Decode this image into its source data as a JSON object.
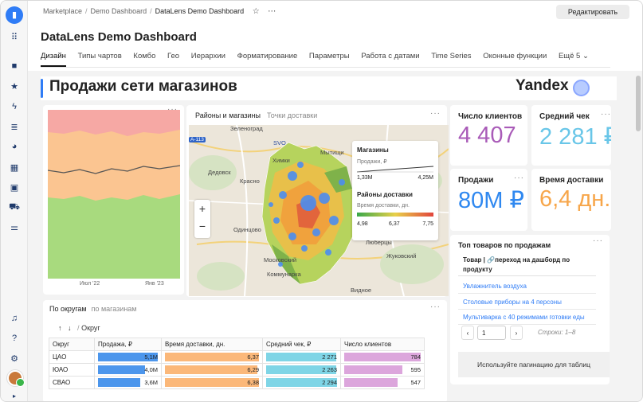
{
  "breadcrumbs": [
    "Marketplace",
    "Demo Dashboard",
    "DataLens Demo Dashboard"
  ],
  "edit_button": "Редактировать",
  "dashboard_title": "DataLens Demo Dashboard",
  "tabs": [
    "Дизайн",
    "Типы чартов",
    "Комбо",
    "Гео",
    "Иерархии",
    "Форматирование",
    "Параметры",
    "Работа с датами",
    "Time Series",
    "Оконные функции",
    "Ещё 5"
  ],
  "active_tab": "Дизайн",
  "header": {
    "title": "Продажи сети магазинов",
    "brand": "Yandex"
  },
  "area_chart": {
    "x_ticks": [
      "Июл '22",
      "Янв '23"
    ],
    "colors": {
      "top": "#f6a8a4",
      "mid": "#fbc591",
      "bottom": "#a8da7e",
      "line": "#555555"
    }
  },
  "map_widget": {
    "tabs": [
      "Районы и магазины",
      "Точки доставки"
    ],
    "cities": [
      "Зеленоград",
      "Химки",
      "Мытищи",
      "Дедовск",
      "Красно",
      "Одинцово",
      "Люберцы",
      "Московский",
      "Жуковский",
      "Коммунарка",
      "Видное",
      "SVO",
      "A-113"
    ],
    "legend": {
      "title1": "Магазины",
      "sub1": "Продажи, ₽",
      "min1": "1,33М",
      "max1": "4,25М",
      "title2": "Районы доставки",
      "sub2": "Время доставки, дн.",
      "v1": "4,98",
      "v2": "6,37",
      "v3": "7,75"
    }
  },
  "kpis": [
    {
      "label": "Число клиентов",
      "value": "4 407",
      "color": "#a95bb8"
    },
    {
      "label": "Средний чек",
      "value": "2 281 ₽",
      "color": "#69c6e8"
    },
    {
      "label": "Продажи",
      "value": "80М ₽",
      "color": "#2f88f0"
    },
    {
      "label": "Время доставки",
      "value": "6,4 дн.",
      "color": "#f7a64a"
    }
  ],
  "top_products": {
    "title": "Топ товаров по продажам",
    "header": "Товар | 🔗переход на дашборд по продукту",
    "rows": [
      "Увлажнитель воздуха",
      "Столовые приборы на 4 персоны",
      "Мультиварка с 40 режимами готовки еды"
    ],
    "page": "1",
    "page_info": "Строки: 1–8",
    "note": "Используйте пагинацию для таблиц"
  },
  "region_table": {
    "tabs": [
      "По округам",
      "по магазинам"
    ],
    "path": "Округ",
    "columns": [
      "Округ",
      "Продажа, ₽",
      "Время доставки, дн.",
      "Средний чек, ₽",
      "Число клиентов"
    ],
    "rows": [
      {
        "name": "ЦАО",
        "sales": "5,1М",
        "sales_v": 5.1,
        "delivery": "6,37",
        "delivery_v": 6.37,
        "check": "2 271",
        "check_v": 2271,
        "clients": "784",
        "clients_v": 784
      },
      {
        "name": "ЮАО",
        "sales": "4,0М",
        "sales_v": 4.0,
        "delivery": "6,29",
        "delivery_v": 6.29,
        "check": "2 263",
        "check_v": 2263,
        "clients": "595",
        "clients_v": 595
      },
      {
        "name": "СВАО",
        "sales": "3,6М",
        "sales_v": 3.6,
        "delivery": "6,38",
        "delivery_v": 6.38,
        "check": "2 294",
        "check_v": 2294,
        "clients": "547",
        "clients_v": 547
      }
    ],
    "bar_colors": [
      "#4c96ec",
      "#fbb87a",
      "#7fd5e6",
      "#dca6dc"
    ]
  }
}
